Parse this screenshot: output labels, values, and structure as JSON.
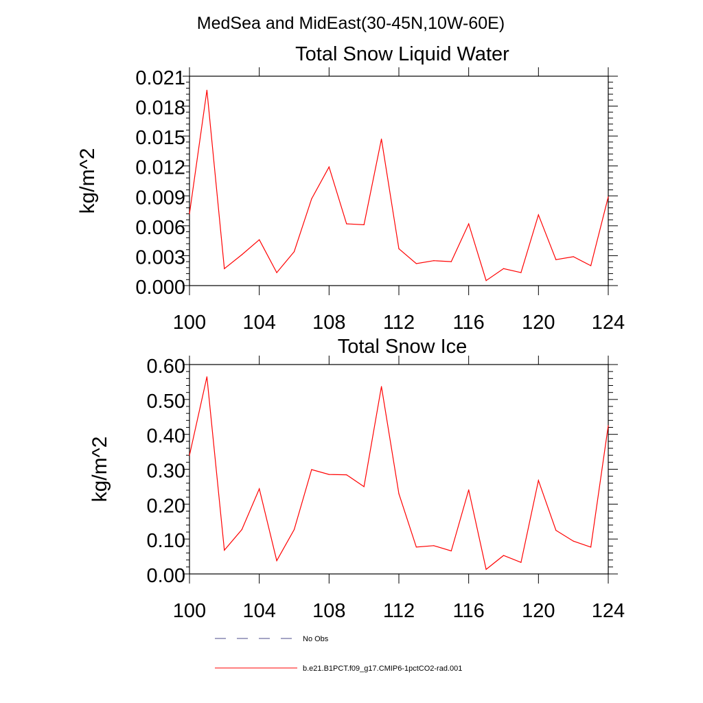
{
  "figure_title": "MedSea and MidEast(30-45N,10W-60E)",
  "legend": [
    {
      "label": "No Obs",
      "style": "dashed",
      "color": "#4a4a8a"
    },
    {
      "label": "b.e21.B1PCT.f09_g17.CMIP6-1pctCO2-rad.001",
      "style": "solid",
      "color": "#ff0000"
    }
  ],
  "chart_data": [
    {
      "type": "line",
      "title": "Total Snow Liquid Water",
      "xlabel": "",
      "ylabel": "kg/m^2",
      "xlim": [
        100,
        124
      ],
      "ylim": [
        0,
        0.021
      ],
      "xticks": [
        "100",
        "104",
        "108",
        "112",
        "116",
        "120",
        "124"
      ],
      "yticks": [
        "0.000",
        "0.003",
        "0.006",
        "0.009",
        "0.012",
        "0.015",
        "0.018",
        "0.021"
      ],
      "x": [
        100,
        101,
        102,
        103,
        104,
        105,
        106,
        107,
        108,
        109,
        110,
        111,
        112,
        113,
        114,
        115,
        116,
        117,
        118,
        119,
        120,
        121,
        122,
        123,
        124
      ],
      "series": [
        {
          "name": "b.e21.B1PCT.f09_g17.CMIP6-1pctCO2-rad.001",
          "color": "#ff0000",
          "values": [
            0.0072,
            0.0196,
            0.0017,
            0.0031,
            0.0046,
            0.0013,
            0.0034,
            0.0087,
            0.0119,
            0.0062,
            0.0061,
            0.0147,
            0.0037,
            0.0022,
            0.0025,
            0.0024,
            0.0062,
            0.0005,
            0.0017,
            0.0013,
            0.0071,
            0.0026,
            0.0029,
            0.002,
            0.0089
          ]
        }
      ]
    },
    {
      "type": "line",
      "title": "Total Snow Ice",
      "xlabel": "",
      "ylabel": "kg/m^2",
      "xlim": [
        100,
        124
      ],
      "ylim": [
        0,
        0.6
      ],
      "xticks": [
        "100",
        "104",
        "108",
        "112",
        "116",
        "120",
        "124"
      ],
      "yticks": [
        "0.00",
        "0.10",
        "0.20",
        "0.30",
        "0.40",
        "0.50",
        "0.60"
      ],
      "x": [
        100,
        101,
        102,
        103,
        104,
        105,
        106,
        107,
        108,
        109,
        110,
        111,
        112,
        113,
        114,
        115,
        116,
        117,
        118,
        119,
        120,
        121,
        122,
        123,
        124
      ],
      "series": [
        {
          "name": "b.e21.B1PCT.f09_g17.CMIP6-1pctCO2-rad.001",
          "color": "#ff0000",
          "values": [
            0.34,
            0.565,
            0.068,
            0.127,
            0.244,
            0.038,
            0.127,
            0.299,
            0.285,
            0.284,
            0.25,
            0.537,
            0.23,
            0.077,
            0.081,
            0.066,
            0.241,
            0.013,
            0.053,
            0.033,
            0.268,
            0.125,
            0.094,
            0.077,
            0.425
          ]
        }
      ]
    }
  ]
}
